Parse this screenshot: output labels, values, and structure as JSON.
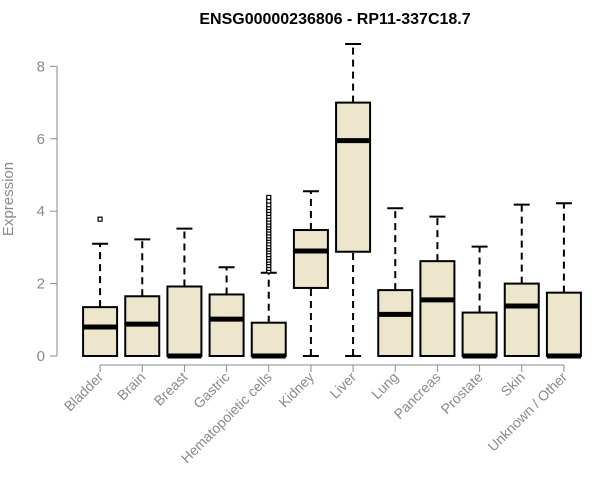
{
  "chart_data": {
    "type": "boxplot",
    "title": "ENSG00000236806 - RP11-337C18.7",
    "xlabel": "",
    "ylabel": "Expression",
    "ylim": [
      0,
      8.6
    ],
    "yticks": [
      "0",
      "2",
      "4",
      "6",
      "8"
    ],
    "grid": false,
    "legend": "none",
    "colors": {
      "box_fill": "#ede6cd",
      "box_stroke": "#000000",
      "axis": "#8a8a8a"
    },
    "categories": [
      "Bladder",
      "Brain",
      "Breast",
      "Gastric",
      "Hematopoietic cells",
      "Kidney",
      "Liver",
      "Lung",
      "Pancreas",
      "Prostate",
      "Skin",
      "Unknown / Other"
    ],
    "boxes": [
      {
        "min": 0,
        "q1": 0,
        "median": 0.8,
        "q3": 1.35,
        "max": 3.1,
        "outliers": [
          3.78
        ]
      },
      {
        "min": 0,
        "q1": 0,
        "median": 0.88,
        "q3": 1.65,
        "max": 3.22,
        "outliers": []
      },
      {
        "min": 0,
        "q1": 0,
        "median": 0.0,
        "q3": 1.92,
        "max": 3.52,
        "outliers": []
      },
      {
        "min": 0,
        "q1": 0,
        "median": 1.02,
        "q3": 1.7,
        "max": 2.45,
        "outliers": []
      },
      {
        "min": 0,
        "q1": 0,
        "median": 0.0,
        "q3": 0.92,
        "max": 2.3,
        "outliers": [
          2.35,
          2.42,
          2.5,
          2.58,
          2.65,
          2.72,
          2.8,
          2.88,
          2.95,
          3.02,
          3.1,
          3.18,
          3.25,
          3.32,
          3.4,
          3.48,
          3.55,
          3.62,
          3.7,
          3.78,
          3.86,
          3.94,
          4.02,
          4.1,
          4.18,
          4.28,
          4.38
        ]
      },
      {
        "min": 0,
        "q1": 1.88,
        "median": 2.9,
        "q3": 3.48,
        "max": 4.55,
        "outliers": []
      },
      {
        "min": 0,
        "q1": 2.88,
        "median": 5.95,
        "q3": 7.0,
        "max": 8.62,
        "outliers": []
      },
      {
        "min": 0,
        "q1": 0,
        "median": 1.15,
        "q3": 1.82,
        "max": 4.08,
        "outliers": []
      },
      {
        "min": 0,
        "q1": 0,
        "median": 1.55,
        "q3": 2.62,
        "max": 3.85,
        "outliers": []
      },
      {
        "min": 0,
        "q1": 0,
        "median": 0.0,
        "q3": 1.2,
        "max": 3.02,
        "outliers": []
      },
      {
        "min": 0,
        "q1": 0,
        "median": 1.38,
        "q3": 2.0,
        "max": 4.18,
        "outliers": []
      },
      {
        "min": 0,
        "q1": 0,
        "median": 0.0,
        "q3": 1.75,
        "max": 4.22,
        "outliers": []
      }
    ]
  }
}
